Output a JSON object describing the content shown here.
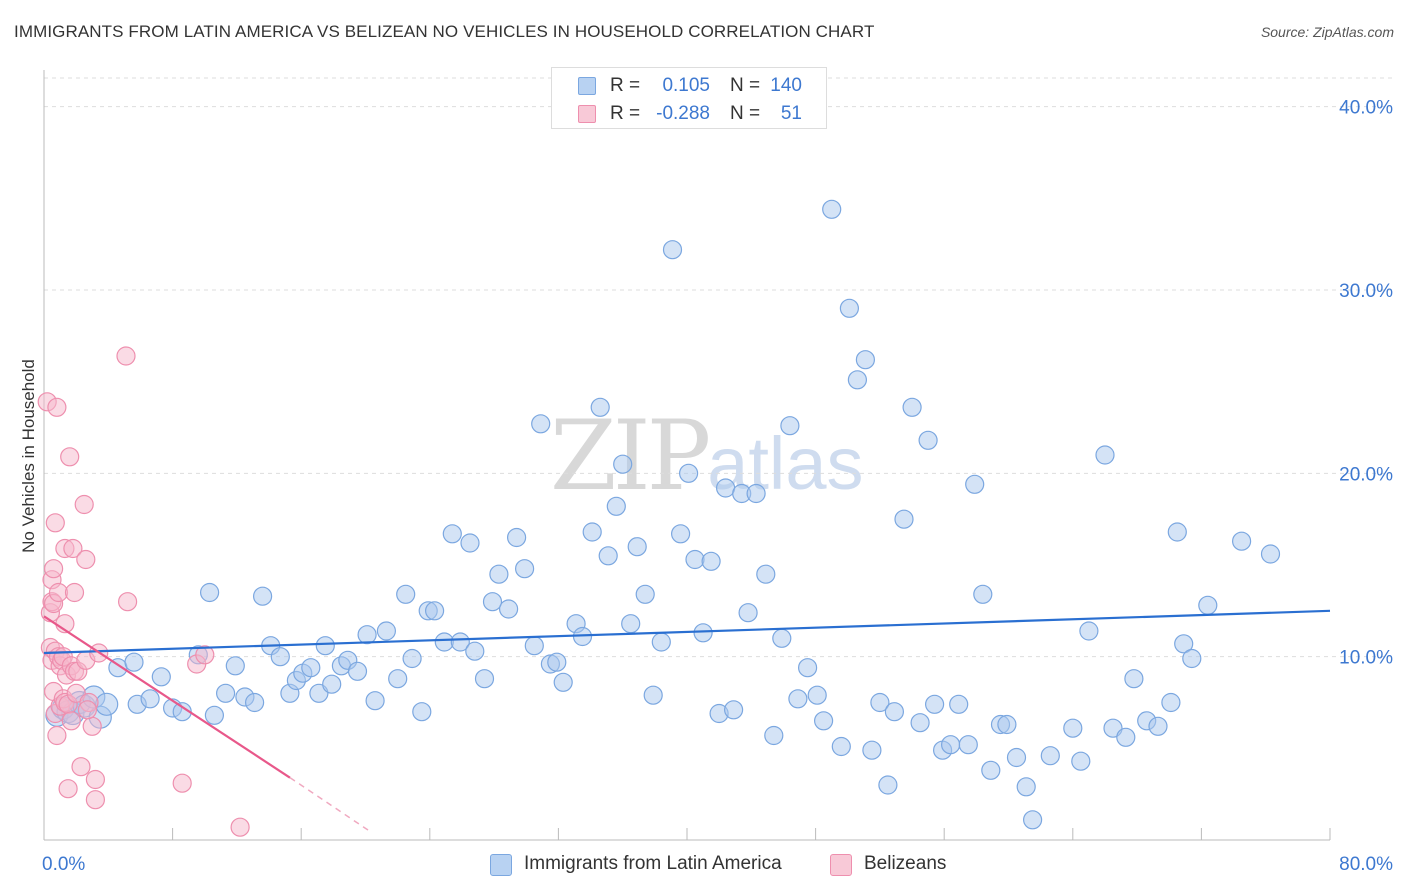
{
  "title": "IMMIGRANTS FROM LATIN AMERICA VS BELIZEAN NO VEHICLES IN HOUSEHOLD CORRELATION CHART",
  "source": "Source: ZipAtlas.com",
  "watermark": {
    "zip": "ZIP",
    "atlas": "atlas"
  },
  "colors": {
    "blue_fill": "#a9c7ee",
    "blue_stroke": "#7ba7e0",
    "blue_line": "#2a6fd1",
    "pink_fill": "#f5b8cb",
    "pink_stroke": "#ee8fae",
    "pink_line": "#e8588a",
    "axis_text": "#3d78d0",
    "grid": "#dddddd"
  },
  "legend_top": [
    {
      "r_label": "R =",
      "r_value": "0.105",
      "n_label": "N =",
      "n_value": "140"
    },
    {
      "r_label": "R =",
      "r_value": "-0.288",
      "n_label": "N =",
      "n_value": "51"
    }
  ],
  "chart_data": {
    "type": "scatter",
    "title": "IMMIGRANTS FROM LATIN AMERICA VS BELIZEAN NO VEHICLES IN HOUSEHOLD CORRELATION CHART",
    "xlabel": "",
    "ylabel": "No Vehicles in Household",
    "xlim": [
      0,
      80
    ],
    "ylim": [
      0,
      42
    ],
    "x_tick_labels": [
      "0.0%",
      "80.0%"
    ],
    "y_ticks": [
      10,
      20,
      30,
      40
    ],
    "y_tick_labels": [
      "10.0%",
      "20.0%",
      "30.0%",
      "40.0%"
    ],
    "grid": "horizontal dashed",
    "legend_position": "bottom-center",
    "series": [
      {
        "name": "Immigrants from Latin America",
        "color": "#a9c7ee",
        "trend": {
          "x": [
            0,
            80
          ],
          "y": [
            10.2,
            12.5
          ]
        },
        "points": [
          [
            0.8,
            6.8
          ],
          [
            1.2,
            7.2
          ],
          [
            1.5,
            7.0
          ],
          [
            1.8,
            6.9
          ],
          [
            2.2,
            7.5
          ],
          [
            2.5,
            7.3
          ],
          [
            3.1,
            7.8
          ],
          [
            3.5,
            6.7
          ],
          [
            3.9,
            7.4
          ],
          [
            4.6,
            9.4
          ],
          [
            5.6,
            9.7
          ],
          [
            5.8,
            7.4
          ],
          [
            6.6,
            7.7
          ],
          [
            7.3,
            8.9
          ],
          [
            8.0,
            7.2
          ],
          [
            8.6,
            7.0
          ],
          [
            9.6,
            10.1
          ],
          [
            10.3,
            13.5
          ],
          [
            10.6,
            6.8
          ],
          [
            11.3,
            8.0
          ],
          [
            11.9,
            9.5
          ],
          [
            12.5,
            7.8
          ],
          [
            13.1,
            7.5
          ],
          [
            13.6,
            13.3
          ],
          [
            14.1,
            10.6
          ],
          [
            14.7,
            10.0
          ],
          [
            15.3,
            8.0
          ],
          [
            15.7,
            8.7
          ],
          [
            16.1,
            9.1
          ],
          [
            16.6,
            9.4
          ],
          [
            17.1,
            8.0
          ],
          [
            17.5,
            10.6
          ],
          [
            17.9,
            8.5
          ],
          [
            18.5,
            9.5
          ],
          [
            18.9,
            9.8
          ],
          [
            19.5,
            9.2
          ],
          [
            20.1,
            11.2
          ],
          [
            20.6,
            7.6
          ],
          [
            21.3,
            11.4
          ],
          [
            22.0,
            8.8
          ],
          [
            22.5,
            13.4
          ],
          [
            22.9,
            9.9
          ],
          [
            23.5,
            7.0
          ],
          [
            23.9,
            12.5
          ],
          [
            24.3,
            12.5
          ],
          [
            24.9,
            10.8
          ],
          [
            25.4,
            16.7
          ],
          [
            25.9,
            10.8
          ],
          [
            26.5,
            16.2
          ],
          [
            26.8,
            10.3
          ],
          [
            27.4,
            8.8
          ],
          [
            27.9,
            13.0
          ],
          [
            28.3,
            14.5
          ],
          [
            28.9,
            12.6
          ],
          [
            29.4,
            16.5
          ],
          [
            29.9,
            14.8
          ],
          [
            30.5,
            10.6
          ],
          [
            30.9,
            22.7
          ],
          [
            31.5,
            9.6
          ],
          [
            31.9,
            9.7
          ],
          [
            32.3,
            8.6
          ],
          [
            33.1,
            11.8
          ],
          [
            33.5,
            11.1
          ],
          [
            34.1,
            16.8
          ],
          [
            34.6,
            23.6
          ],
          [
            35.1,
            15.5
          ],
          [
            35.6,
            18.2
          ],
          [
            36.0,
            20.5
          ],
          [
            36.5,
            11.8
          ],
          [
            36.9,
            16.0
          ],
          [
            37.4,
            13.4
          ],
          [
            37.9,
            7.9
          ],
          [
            38.4,
            10.8
          ],
          [
            39.1,
            32.2
          ],
          [
            39.6,
            16.7
          ],
          [
            40.1,
            20.0
          ],
          [
            40.5,
            15.3
          ],
          [
            41.0,
            11.3
          ],
          [
            41.5,
            15.2
          ],
          [
            42.0,
            6.9
          ],
          [
            42.4,
            19.2
          ],
          [
            42.9,
            7.1
          ],
          [
            43.4,
            18.9
          ],
          [
            43.8,
            12.4
          ],
          [
            44.3,
            18.9
          ],
          [
            44.9,
            14.5
          ],
          [
            45.4,
            5.7
          ],
          [
            45.9,
            11.0
          ],
          [
            46.4,
            22.6
          ],
          [
            46.9,
            7.7
          ],
          [
            47.5,
            9.4
          ],
          [
            48.1,
            7.9
          ],
          [
            48.5,
            6.5
          ],
          [
            49.0,
            34.4
          ],
          [
            49.6,
            5.1
          ],
          [
            50.1,
            29.0
          ],
          [
            50.6,
            25.1
          ],
          [
            51.1,
            26.2
          ],
          [
            51.5,
            4.9
          ],
          [
            52.0,
            7.5
          ],
          [
            52.5,
            3.0
          ],
          [
            52.9,
            7.0
          ],
          [
            53.5,
            17.5
          ],
          [
            54.0,
            23.6
          ],
          [
            54.5,
            6.4
          ],
          [
            55.0,
            21.8
          ],
          [
            55.4,
            7.4
          ],
          [
            55.9,
            4.9
          ],
          [
            56.4,
            5.2
          ],
          [
            56.9,
            7.4
          ],
          [
            57.5,
            5.2
          ],
          [
            57.9,
            19.4
          ],
          [
            58.4,
            13.4
          ],
          [
            58.9,
            3.8
          ],
          [
            59.5,
            6.3
          ],
          [
            59.9,
            6.3
          ],
          [
            60.5,
            4.5
          ],
          [
            61.1,
            2.9
          ],
          [
            61.5,
            1.1
          ],
          [
            62.6,
            4.6
          ],
          [
            64.0,
            6.1
          ],
          [
            64.5,
            4.3
          ],
          [
            65.0,
            11.4
          ],
          [
            66.0,
            21.0
          ],
          [
            66.5,
            6.1
          ],
          [
            67.3,
            5.6
          ],
          [
            67.8,
            8.8
          ],
          [
            68.6,
            6.5
          ],
          [
            69.3,
            6.2
          ],
          [
            70.1,
            7.5
          ],
          [
            70.5,
            16.8
          ],
          [
            70.9,
            10.7
          ],
          [
            71.4,
            9.9
          ],
          [
            72.4,
            12.8
          ],
          [
            74.5,
            16.3
          ],
          [
            76.3,
            15.6
          ]
        ]
      },
      {
        "name": "Belizeans",
        "color": "#f5b8cb",
        "trend": {
          "x": [
            0,
            15.3
          ],
          "y": [
            12.2,
            3.4
          ],
          "dashed_to": [
            20.4,
            0.4
          ]
        },
        "points": [
          [
            0.2,
            23.9
          ],
          [
            0.4,
            10.5
          ],
          [
            0.4,
            12.4
          ],
          [
            0.5,
            14.2
          ],
          [
            0.5,
            9.8
          ],
          [
            0.5,
            13.0
          ],
          [
            0.6,
            14.8
          ],
          [
            0.6,
            12.9
          ],
          [
            0.6,
            8.1
          ],
          [
            0.7,
            17.3
          ],
          [
            0.7,
            10.3
          ],
          [
            0.7,
            6.9
          ],
          [
            0.8,
            23.6
          ],
          [
            0.8,
            5.7
          ],
          [
            0.9,
            13.5
          ],
          [
            0.9,
            10.0
          ],
          [
            1.0,
            9.5
          ],
          [
            1.0,
            7.3
          ],
          [
            1.1,
            9.8
          ],
          [
            1.2,
            10.0
          ],
          [
            1.2,
            7.7
          ],
          [
            1.3,
            15.9
          ],
          [
            1.3,
            11.8
          ],
          [
            1.3,
            7.5
          ],
          [
            1.4,
            9.0
          ],
          [
            1.5,
            7.4
          ],
          [
            1.5,
            2.8
          ],
          [
            1.6,
            20.9
          ],
          [
            1.7,
            9.5
          ],
          [
            1.7,
            6.5
          ],
          [
            1.8,
            15.9
          ],
          [
            1.9,
            9.2
          ],
          [
            1.9,
            13.5
          ],
          [
            2.0,
            8.0
          ],
          [
            2.1,
            9.2
          ],
          [
            2.3,
            4.0
          ],
          [
            2.5,
            18.3
          ],
          [
            2.6,
            9.8
          ],
          [
            2.6,
            15.3
          ],
          [
            2.8,
            7.5
          ],
          [
            3.0,
            6.2
          ],
          [
            3.2,
            3.3
          ],
          [
            3.2,
            2.2
          ],
          [
            5.1,
            26.4
          ],
          [
            5.2,
            13.0
          ],
          [
            8.6,
            3.1
          ],
          [
            9.5,
            9.6
          ],
          [
            10.0,
            10.1
          ],
          [
            12.2,
            0.7
          ],
          [
            2.7,
            7.1
          ],
          [
            3.4,
            10.2
          ]
        ]
      }
    ]
  },
  "legend_bottom": [
    "Immigrants from Latin America",
    "Belizeans"
  ]
}
